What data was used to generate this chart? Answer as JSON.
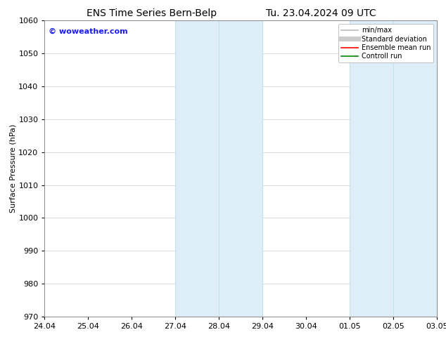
{
  "title_left": "ENS Time Series Bern-Belp",
  "title_right": "Tu. 23.04.2024 09 UTC",
  "ylabel": "Surface Pressure (hPa)",
  "ylim": [
    970,
    1060
  ],
  "yticks": [
    970,
    980,
    990,
    1000,
    1010,
    1020,
    1030,
    1040,
    1050,
    1060
  ],
  "xtick_labels": [
    "24.04",
    "25.04",
    "26.04",
    "27.04",
    "28.04",
    "29.04",
    "30.04",
    "01.05",
    "02.05",
    "03.05"
  ],
  "shaded_regions": [
    {
      "xstart": 3.0,
      "xend": 5.0
    },
    {
      "xstart": 7.0,
      "xend": 9.0
    }
  ],
  "shaded_color": "#ddeef8",
  "shaded_divider_color": "#c8dff0",
  "watermark": "© woweather.com",
  "watermark_color": "#1a1aff",
  "legend_entries": [
    {
      "label": "min/max",
      "color": "#bbbbbb",
      "lw": 1.2
    },
    {
      "label": "Standard deviation",
      "color": "#cccccc",
      "lw": 5
    },
    {
      "label": "Ensemble mean run",
      "color": "#ff0000",
      "lw": 1.2
    },
    {
      "label": "Controll run",
      "color": "#008800",
      "lw": 1.2
    }
  ],
  "bg_color": "#ffffff",
  "grid_color": "#cccccc",
  "font_size": 8,
  "title_font_size": 10,
  "watermark_font_size": 8
}
